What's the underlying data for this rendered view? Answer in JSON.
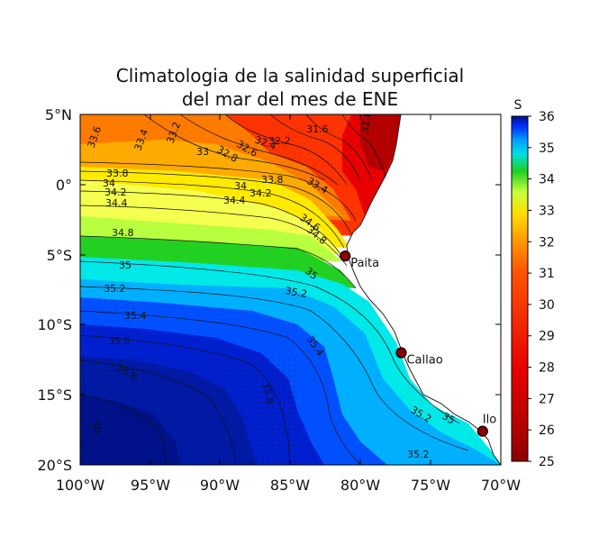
{
  "title": {
    "line1": "Climatologia de la salinidad superficial",
    "line2": "del mar del mes de ENE"
  },
  "axes": {
    "lon_ticks": [
      "100°W",
      "95°W",
      "90°W",
      "85°W",
      "80°W",
      "75°W",
      "70°W"
    ],
    "lat_ticks": [
      "5°N",
      "0°",
      "5°S",
      "10°S",
      "15°S",
      "20°S"
    ]
  },
  "colorbar": {
    "label": "S",
    "ticks": [
      "36",
      "35",
      "34",
      "33",
      "32",
      "31",
      "30",
      "29",
      "28",
      "27",
      "26",
      "25"
    ],
    "range": [
      25,
      36
    ],
    "colors": [
      "#8b0000",
      "#c80000",
      "#ff1a00",
      "#ff6a00",
      "#ffb000",
      "#ffff00",
      "#c8ff40",
      "#20d020",
      "#00e0e0",
      "#00aaff",
      "#0040ff",
      "#00108c"
    ]
  },
  "contour_labels": [
    "33.6",
    "33.4",
    "33.2",
    "33",
    "32.8",
    "32.6",
    "32.4",
    "32.2",
    "32",
    "31.8",
    "31.6",
    "33.8",
    "34",
    "34.2",
    "34.4",
    "34.6",
    "34.8",
    "35",
    "35.2",
    "35.4",
    "35.6",
    "35.8",
    "36"
  ],
  "ports": [
    {
      "name": "Paita",
      "lon": -81.1,
      "lat": -5.1
    },
    {
      "name": "Callao",
      "lon": -77.1,
      "lat": -12.0
    },
    {
      "name": "Ilo",
      "lon": -71.3,
      "lat": -17.6
    }
  ],
  "chart_data": {
    "type": "heatmap",
    "title": "Climatologia de la salinidad superficial del mar del mes de ENE",
    "xlabel": "",
    "ylabel": "",
    "xlim": [
      -100,
      -70
    ],
    "ylim": [
      -20,
      5
    ],
    "colorbar_label": "S",
    "colorbar_range": [
      25,
      36
    ],
    "contour_levels": [
      31.6,
      31.8,
      32,
      32.2,
      32.4,
      32.6,
      32.8,
      33,
      33.2,
      33.4,
      33.6,
      33.8,
      34,
      34.2,
      34.4,
      34.6,
      34.8,
      35,
      35.2,
      35.4,
      35.6,
      35.8,
      36
    ]
  }
}
